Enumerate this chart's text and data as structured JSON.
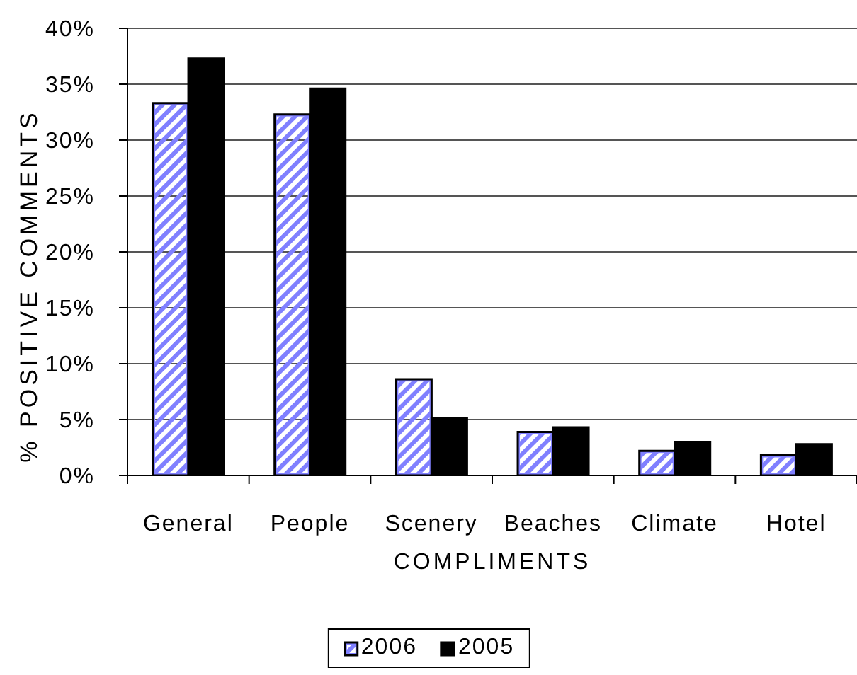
{
  "chart_data": {
    "type": "bar",
    "xlabel": "COMPLIMENTS",
    "ylabel": "% POSITIVE COMMENTS",
    "categories": [
      "General",
      "People",
      "Scenery",
      "Beaches",
      "Climate",
      "Hotel"
    ],
    "series": [
      {
        "name": "2006",
        "color": "#8080ff",
        "values": [
          33.3,
          32.3,
          8.6,
          3.9,
          2.2,
          1.8
        ]
      },
      {
        "name": "2005",
        "color": "#000000",
        "values": [
          37.3,
          34.6,
          5.1,
          4.3,
          3.0,
          2.8
        ]
      }
    ],
    "ylim": [
      0,
      40
    ],
    "yticks": [
      {
        "value": 0,
        "label": "0%"
      },
      {
        "value": 5,
        "label": "5%"
      },
      {
        "value": 10,
        "label": "10%"
      },
      {
        "value": 15,
        "label": "15%"
      },
      {
        "value": 20,
        "label": "20%"
      },
      {
        "value": 25,
        "label": "25%"
      },
      {
        "value": 30,
        "label": "30%"
      },
      {
        "value": 35,
        "label": "35%"
      },
      {
        "value": 40,
        "label": "40%"
      }
    ],
    "grid": "y",
    "legend": "bottom"
  }
}
